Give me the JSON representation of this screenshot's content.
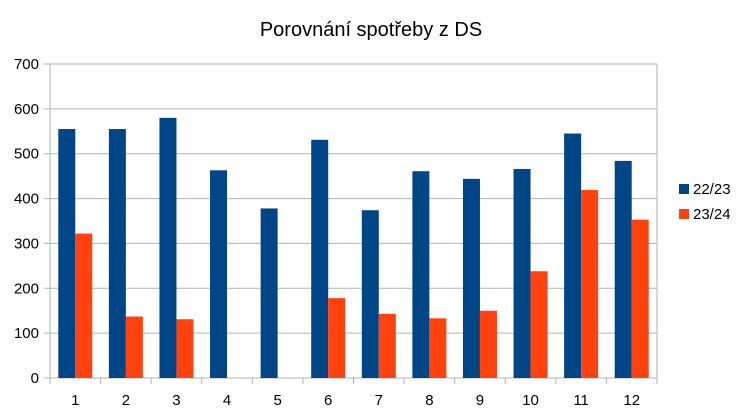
{
  "chart_data": {
    "type": "bar",
    "title": "Porovnání spotřeby z DS",
    "xlabel": "",
    "ylabel": "",
    "categories": [
      "1",
      "2",
      "3",
      "4",
      "5",
      "6",
      "7",
      "8",
      "9",
      "10",
      "11",
      "12"
    ],
    "series": [
      {
        "name": "22/23",
        "color": "#004586",
        "values": [
          555,
          555,
          580,
          463,
          378,
          531,
          374,
          461,
          444,
          466,
          545,
          484
        ]
      },
      {
        "name": "23/24",
        "color": "#ff420e",
        "values": [
          322,
          137,
          131,
          null,
          null,
          178,
          143,
          133,
          150,
          238,
          419,
          353
        ]
      }
    ],
    "ylim": [
      0,
      700
    ],
    "yticks": [
      0,
      100,
      200,
      300,
      400,
      500,
      600,
      700
    ],
    "grid": true,
    "legend": "right"
  }
}
